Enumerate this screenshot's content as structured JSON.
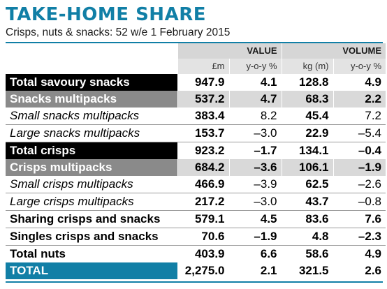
{
  "title": "TAKE-HOME SHARE",
  "subtitle": "Crisps, nuts & snacks: 52 w/e 1 February 2015",
  "headers": {
    "value": "VALUE",
    "volume": "VOLUME",
    "value_unit": "£m",
    "value_change": "y-o-y %",
    "volume_unit": "kg (m)",
    "volume_change": "y-o-y %"
  },
  "rows": [
    {
      "label": "Total savoury snacks",
      "value": "947.9",
      "value_yoy": "4.1",
      "volume": "128.8",
      "volume_yoy": "4.9"
    },
    {
      "label": "Snacks multipacks",
      "value": "537.2",
      "value_yoy": "4.7",
      "volume": "68.3",
      "volume_yoy": "2.2"
    },
    {
      "label": "Small snacks multipacks",
      "value": "383.4",
      "value_yoy": "8.2",
      "volume": "45.4",
      "volume_yoy": "7.2"
    },
    {
      "label": "Large snacks multipacks",
      "value": "153.7",
      "value_yoy": "–3.0",
      "volume": "22.9",
      "volume_yoy": "–5.4"
    },
    {
      "label": "Total crisps",
      "value": "923.2",
      "value_yoy": "–1.7",
      "volume": "134.1",
      "volume_yoy": "–0.4"
    },
    {
      "label": "Crisps multipacks",
      "value": "684.2",
      "value_yoy": "–3.6",
      "volume": "106.1",
      "volume_yoy": "–1.9"
    },
    {
      "label": "Small crisps multipacks",
      "value": "466.9",
      "value_yoy": "–3.9",
      "volume": "62.5",
      "volume_yoy": "–2.6"
    },
    {
      "label": "Large crisps multipacks",
      "value": "217.2",
      "value_yoy": "–3.0",
      "volume": "43.7",
      "volume_yoy": "–0.8"
    },
    {
      "label": "Sharing crisps and snacks",
      "value": "579.1",
      "value_yoy": "4.5",
      "volume": "83.6",
      "volume_yoy": "7.6"
    },
    {
      "label": "Singles crisps and snacks",
      "value": "70.6",
      "value_yoy": "–1.9",
      "volume": "4.8",
      "volume_yoy": "–2.3"
    },
    {
      "label": "Total nuts",
      "value": "403.9",
      "value_yoy": "6.6",
      "volume": "58.6",
      "volume_yoy": "4.9"
    },
    {
      "label": "TOTAL",
      "value": "2,275.0",
      "value_yoy": "2.1",
      "volume": "321.5",
      "volume_yoy": "2.6"
    }
  ],
  "colors": {
    "accent": "#117fa6",
    "black_row": "#000000",
    "grey_row": "#8a8a8a"
  }
}
